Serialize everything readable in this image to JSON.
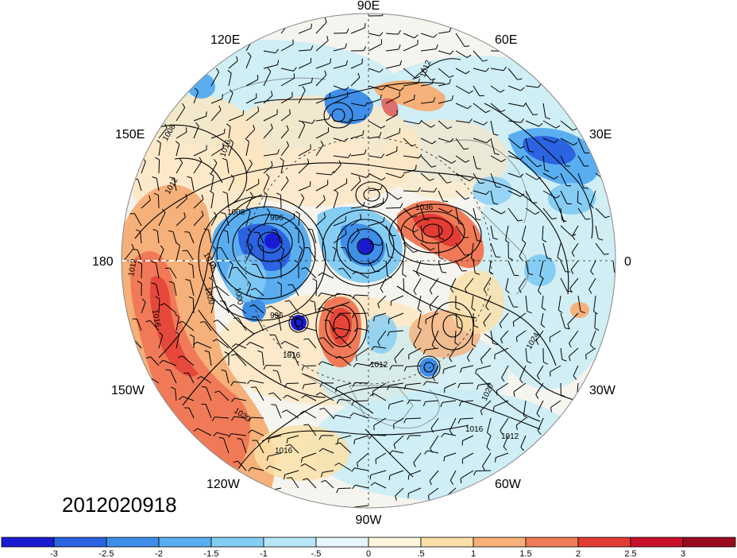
{
  "map": {
    "projection": "north-polar-stereographic",
    "longitude_labels": [
      "90E",
      "60E",
      "30E",
      "0",
      "30W",
      "60W",
      "90W",
      "120W",
      "150W",
      "180",
      "150E",
      "120E"
    ],
    "contour_labels": [
      "1036",
      "1012",
      "1008",
      "1012",
      "1016",
      "1008",
      "996",
      "1016",
      "1012",
      "1016",
      "1020",
      "1000",
      "996",
      "1016",
      "1012",
      "1024",
      "1020",
      "1016",
      "1012",
      "1020",
      "1016"
    ],
    "timestamp": "2012020918",
    "field_colors": {
      "strong_positive": "#e8483a",
      "positive": "#f4a582",
      "weak_positive": "#fde6c0",
      "neutral": "#f7f3ea",
      "weak_negative": "#c8ecf6",
      "negative": "#7fb8e8",
      "strong_negative": "#2e6fd0"
    }
  },
  "colorbar": {
    "tick_labels": [
      "-3",
      "-2.5",
      "-2",
      "-1.5",
      "-1",
      "-.5",
      "0",
      ".5",
      "1",
      "1.5",
      "2",
      "2.5",
      "3"
    ],
    "colors": [
      "#1a1ad2",
      "#2b63e0",
      "#3f8ee8",
      "#5aaef0",
      "#86cdf4",
      "#b8e8f8",
      "#e6f6fc",
      "#fdf6dc",
      "#fbe0a8",
      "#f6b07a",
      "#f07a58",
      "#e33c34",
      "#c8102a",
      "#9a0a1e"
    ]
  }
}
